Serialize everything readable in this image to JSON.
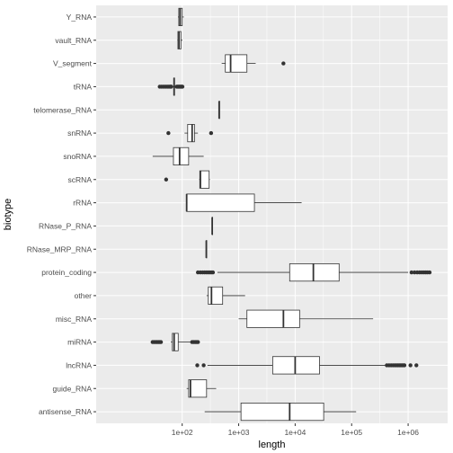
{
  "chart_data": {
    "type": "boxplot",
    "xlabel": "length",
    "ylabel": "biotype",
    "x_scale": "log10",
    "xlim": [
      3,
      5000000
    ],
    "x_ticks": [
      100,
      1000,
      10000,
      100000,
      1000000
    ],
    "x_tick_labels": [
      "1e+02",
      "1e+03",
      "1e+04",
      "1e+05",
      "1e+06"
    ],
    "grid": true,
    "legend": "none",
    "colors": {
      "panel": "#ebebeb",
      "grid": "#ffffff",
      "box_fill": "#ffffff",
      "box_line": "#333333",
      "outlier": "#333333"
    },
    "categories": [
      {
        "label": "Y_RNA",
        "min": 84,
        "q1": 87,
        "median": 92,
        "q3": 100,
        "max": 107,
        "outliers": []
      },
      {
        "label": "vault_RNA",
        "min": 82,
        "q1": 84,
        "median": 88,
        "q3": 95,
        "max": 101,
        "outliers": []
      },
      {
        "label": "V_segment",
        "min": 500,
        "q1": 580,
        "median": 720,
        "q3": 1400,
        "max": 2000,
        "outliers": [
          6200
        ]
      },
      {
        "label": "tRNA",
        "min": 66,
        "q1": 71,
        "median": 72,
        "q3": 73,
        "max": 78,
        "outliers": [
          40,
          43,
          46,
          49,
          52,
          55,
          58,
          61,
          63,
          64,
          80,
          83,
          86,
          89,
          92,
          95,
          98,
          101
        ]
      },
      {
        "label": "telomerase_RNA",
        "min": 451,
        "q1": 451,
        "median": 451,
        "q3": 451,
        "max": 451,
        "outliers": []
      },
      {
        "label": "snRNA",
        "min": 110,
        "q1": 125,
        "median": 150,
        "q3": 165,
        "max": 190,
        "outliers": [
          57,
          325
        ]
      },
      {
        "label": "snoRNA",
        "min": 30,
        "q1": 70,
        "median": 90,
        "q3": 130,
        "max": 240,
        "outliers": []
      },
      {
        "label": "scRNA",
        "min": 200,
        "q1": 205,
        "median": 210,
        "q3": 300,
        "max": 310,
        "outliers": [
          52
        ]
      },
      {
        "label": "rRNA",
        "min": 120,
        "q1": 120,
        "median": 120,
        "q3": 1900,
        "max": 13000,
        "outliers": []
      },
      {
        "label": "RNase_P_RNA",
        "min": 340,
        "q1": 340,
        "median": 340,
        "q3": 340,
        "max": 340,
        "outliers": []
      },
      {
        "label": "RNase_MRP_RNA",
        "min": 267,
        "q1": 267,
        "median": 267,
        "q3": 267,
        "max": 267,
        "outliers": []
      },
      {
        "label": "protein_coding",
        "min": 420,
        "q1": 8000,
        "median": 21000,
        "q3": 60000,
        "max": 1000000,
        "outliers": [
          190,
          210,
          230,
          250,
          270,
          290,
          310,
          330,
          350,
          1150000,
          1300000,
          1450000,
          1600000,
          1750000,
          1900000,
          2050000,
          2200000,
          2400000
        ]
      },
      {
        "label": "other",
        "min": 270,
        "q1": 290,
        "median": 330,
        "q3": 520,
        "max": 1300,
        "outliers": []
      },
      {
        "label": "misc_RNA",
        "min": 1000,
        "q1": 1400,
        "median": 6200,
        "q3": 12000,
        "max": 240000,
        "outliers": []
      },
      {
        "label": "miRNA",
        "min": 63,
        "q1": 67,
        "median": 72,
        "q3": 85,
        "max": 140,
        "outliers": [
          30,
          32,
          34,
          36,
          38,
          40,
          42,
          150,
          160,
          170,
          180,
          190
        ]
      },
      {
        "label": "lncRNA",
        "min": 280,
        "q1": 4000,
        "median": 10000,
        "q3": 27000,
        "max": 400000,
        "outliers": [
          185,
          240,
          420000,
          460000,
          500000,
          540000,
          580000,
          620000,
          660000,
          700000,
          740000,
          780000,
          820000,
          860000,
          1100000,
          1400000
        ]
      },
      {
        "label": "guide_RNA",
        "min": 120,
        "q1": 130,
        "median": 140,
        "q3": 270,
        "max": 400,
        "outliers": []
      },
      {
        "label": "antisense_RNA",
        "min": 250,
        "q1": 1100,
        "median": 8000,
        "q3": 32000,
        "max": 120000,
        "outliers": []
      }
    ]
  }
}
